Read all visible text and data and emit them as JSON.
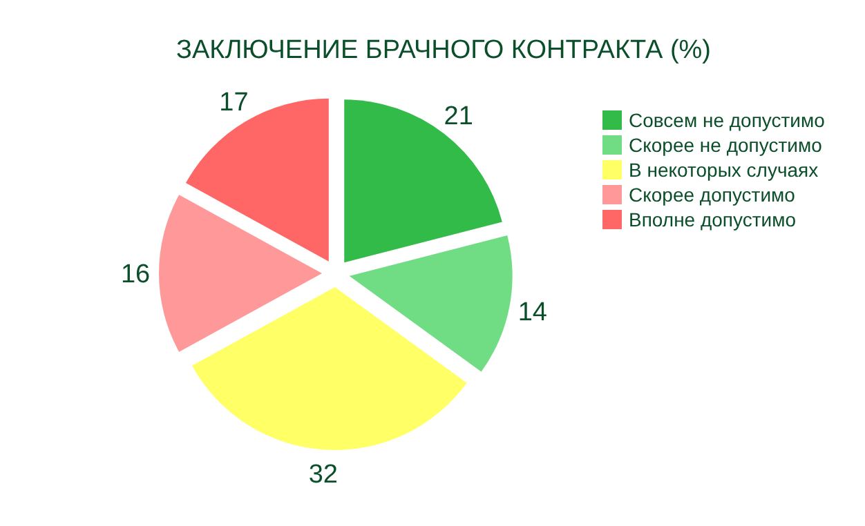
{
  "chart_data": {
    "type": "pie",
    "title": "ЗАКЛЮЧЕНИЕ БРАЧНОГО КОНТРАКТА (%)",
    "categories": [
      "Совсем не допустимо",
      "Скорее не допустимо",
      "В некоторых случаях",
      "Скорее допустимо",
      "Вполне допустимо"
    ],
    "values": [
      21,
      14,
      32,
      16,
      17
    ],
    "colors": [
      "#33bb4a",
      "#70dd85",
      "#ffff66",
      "#ff9999",
      "#ff6666"
    ],
    "data_labels": true,
    "legend": "right"
  }
}
